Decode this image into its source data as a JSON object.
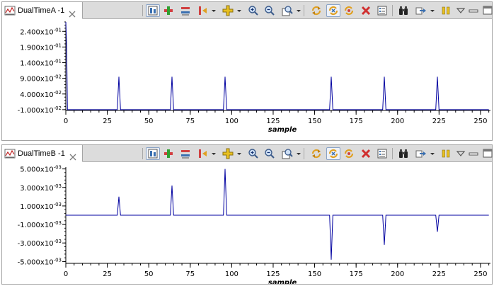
{
  "views": [
    {
      "tab_label": "DualTimeA -1",
      "chart_data": {
        "type": "line",
        "xlabel": "sample",
        "ylabel": "",
        "xlim": [
          0,
          256
        ],
        "ylim": [
          -0.0125,
          0.27
        ],
        "x_ticks": [
          "0",
          "25",
          "50",
          "75",
          "100",
          "125",
          "150",
          "175",
          "200",
          "225",
          "250"
        ],
        "y_ticks": [
          {
            "value": 0.24,
            "mantissa": "2.400",
            "exp": "-01"
          },
          {
            "value": 0.19,
            "mantissa": "1.900",
            "exp": "-01"
          },
          {
            "value": 0.14,
            "mantissa": "1.400",
            "exp": "-01"
          },
          {
            "value": 0.09,
            "mantissa": "9.000",
            "exp": "-02"
          },
          {
            "value": 0.04,
            "mantissa": "4.000",
            "exp": "-02"
          },
          {
            "value": -0.01,
            "mantissa": "-1.000",
            "exp": "-02"
          }
        ],
        "series": [
          {
            "color": "#0000a0",
            "points": [
              [
                0,
                0.27
              ],
              [
                0.5,
                0.19
              ],
              [
                1,
                -0.01
              ],
              [
                31,
                -0.01
              ],
              [
                32,
                0.095
              ],
              [
                33,
                -0.01
              ],
              [
                63,
                -0.01
              ],
              [
                64,
                0.095
              ],
              [
                65,
                -0.01
              ],
              [
                95,
                -0.01
              ],
              [
                96,
                0.095
              ],
              [
                97,
                -0.01
              ],
              [
                159,
                -0.01
              ],
              [
                160,
                0.095
              ],
              [
                161,
                -0.01
              ],
              [
                191,
                -0.01
              ],
              [
                192,
                0.095
              ],
              [
                193,
                -0.01
              ],
              [
                223,
                -0.01
              ],
              [
                224,
                0.095
              ],
              [
                225,
                -0.01
              ],
              [
                255,
                -0.01
              ]
            ]
          }
        ]
      }
    },
    {
      "tab_label": "DualTimeB -1",
      "chart_data": {
        "type": "line",
        "xlabel": "sample",
        "ylabel": "",
        "xlim": [
          0,
          256
        ],
        "ylim": [
          -0.0052,
          0.0052
        ],
        "x_ticks": [
          "0",
          "25",
          "50",
          "75",
          "100",
          "125",
          "150",
          "175",
          "200",
          "225",
          "250"
        ],
        "y_ticks": [
          {
            "value": 0.005,
            "mantissa": "5.000",
            "exp": "-03"
          },
          {
            "value": 0.003,
            "mantissa": "3.000",
            "exp": "-03"
          },
          {
            "value": 0.001,
            "mantissa": "1.000",
            "exp": "-03"
          },
          {
            "value": -0.001,
            "mantissa": "-1.000",
            "exp": "-03"
          },
          {
            "value": -0.003,
            "mantissa": "-3.000",
            "exp": "-03"
          },
          {
            "value": -0.005,
            "mantissa": "-5.000",
            "exp": "-03"
          }
        ],
        "series": [
          {
            "color": "#0000a0",
            "points": [
              [
                0,
                0
              ],
              [
                31,
                0
              ],
              [
                32,
                0.002
              ],
              [
                33,
                0
              ],
              [
                63,
                0
              ],
              [
                64,
                0.0032
              ],
              [
                65,
                0
              ],
              [
                95,
                0
              ],
              [
                96,
                0.005
              ],
              [
                97,
                0
              ],
              [
                159,
                0
              ],
              [
                160,
                -0.0048
              ],
              [
                161,
                0
              ],
              [
                191,
                0
              ],
              [
                192,
                -0.0032
              ],
              [
                193,
                0
              ],
              [
                223,
                0
              ],
              [
                224,
                -0.0018
              ],
              [
                225,
                0
              ],
              [
                255,
                0
              ]
            ]
          }
        ]
      }
    }
  ],
  "toolbar_icons": [
    "axis-settings-icon",
    "add-marker-icon",
    "marker-range-icon",
    "step-marker-icon",
    "add-series-icon",
    "zoom-in-icon",
    "zoom-out-icon",
    "zoom-fit-icon",
    "refresh-icon",
    "sync-view-icon",
    "sync-all-icon",
    "remove-icon",
    "properties-icon",
    "binoculars-icon",
    "export-icon",
    "pause-icon",
    "view-menu-icon",
    "minimize-icon",
    "maximize-icon"
  ]
}
